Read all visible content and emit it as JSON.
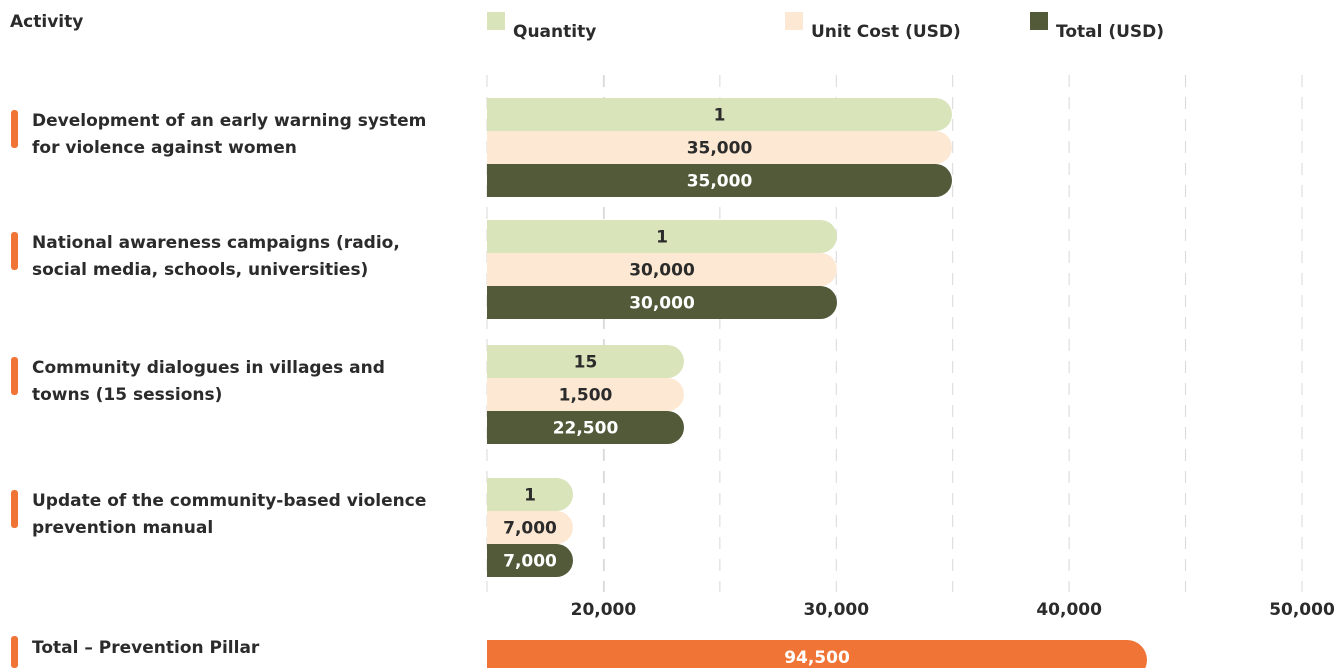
{
  "chart_data": {
    "type": "bar",
    "orientation": "horizontal",
    "category_header": "Activity",
    "categories": [
      [
        "Development of an early warning system",
        "for violence against women"
      ],
      [
        "National awareness campaigns (radio,",
        "social media, schools, universities)"
      ],
      [
        "Community dialogues in villages and",
        "towns (15 sessions)"
      ],
      [
        "Update of the community-based violence",
        "prevention manual"
      ]
    ],
    "series": [
      {
        "name": "Quantity",
        "color": "#d9e4bb",
        "values": [
          1,
          1,
          15,
          1
        ]
      },
      {
        "name": "Unit Cost (USD)",
        "color": "#fde9d3",
        "values": [
          35000,
          30000,
          1500,
          7000
        ],
        "value_labels": [
          "35,000",
          "30,000",
          "1,500",
          "7,000"
        ]
      },
      {
        "name": "Total (USD)",
        "color": "#525a3a",
        "values": [
          35000,
          30000,
          22500,
          7000
        ],
        "value_labels": [
          "35,000",
          "30,000",
          "22,500",
          "7,000"
        ]
      }
    ],
    "xlim": [
      15000,
      50000
    ],
    "xticks": [
      {
        "value": 20000,
        "label": "20,000"
      },
      {
        "value": 30000,
        "label": "30,000"
      },
      {
        "value": 40000,
        "label": "40,000"
      },
      {
        "value": 50000,
        "label": "50,000"
      }
    ],
    "grid": true,
    "total": {
      "label": "Total – Prevention Pillar",
      "value": 94500,
      "value_label": "94,500",
      "color": "#f07436"
    },
    "marker_color": "#f07436"
  }
}
